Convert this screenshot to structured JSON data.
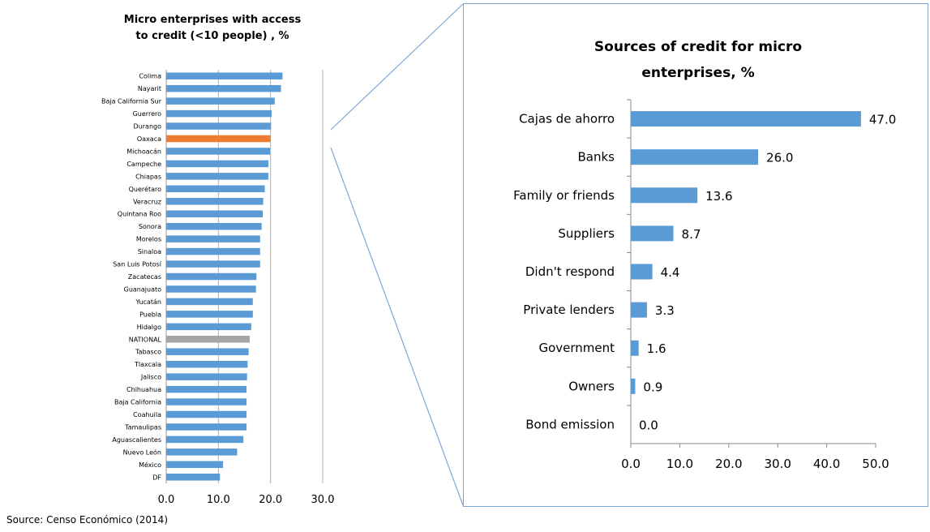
{
  "source_note": "Source:  Censo Económico  (2014)",
  "chart_data": [
    {
      "type": "bar",
      "orientation": "horizontal",
      "title": "Micro enterprises with access to credit  (<10 people) , %",
      "title_lines": [
        "Micro enterprises with access",
        "to credit  (<10 people) , %"
      ],
      "categories": [
        "Colima",
        "Nayarit",
        "Baja California Sur",
        "Guerrero",
        "Durango",
        "Oaxaca",
        "Michoacán",
        "Campeche",
        "Chiapas",
        "Querétaro",
        "Veracruz",
        "Quintana Roo",
        "Sonora",
        "Morelos",
        "Sinaloa",
        "San Luis Potosí",
        "Zacatecas",
        "Guanajuato",
        "Yucatán",
        "Puebla",
        "Hidalgo",
        "NATIONAL",
        "Tabasco",
        "Tlaxcala",
        "Jalisco",
        "Chihuahua",
        "Baja California",
        "Coahuila",
        "Tamaulipas",
        "Aguascalientes",
        "Nuevo León",
        "México",
        "DF"
      ],
      "values": [
        22.3,
        22.0,
        20.8,
        20.2,
        20.1,
        20.0,
        19.9,
        19.6,
        19.6,
        18.9,
        18.6,
        18.5,
        18.3,
        18.0,
        18.0,
        18.0,
        17.3,
        17.2,
        16.6,
        16.6,
        16.3,
        16.0,
        15.8,
        15.6,
        15.5,
        15.4,
        15.4,
        15.4,
        15.4,
        14.8,
        13.6,
        10.9,
        10.3
      ],
      "highlight": {
        "Oaxaca": "#ed7d31",
        "NATIONAL": "#a5a5a5"
      },
      "bar_color": "#5b9bd5",
      "xlim": [
        0,
        30
      ],
      "xticks": [
        "0.0",
        "10.0",
        "20.0",
        "30.0"
      ],
      "grid": "vertical"
    },
    {
      "type": "bar",
      "orientation": "horizontal",
      "title": "Sources of credit for micro enterprises, %",
      "title_lines": [
        "Sources of credit for micro",
        "enterprises, %"
      ],
      "categories": [
        "Cajas de ahorro",
        "Banks",
        "Family or friends",
        "Suppliers",
        "Didn't respond",
        "Private lenders",
        "Government",
        "Owners",
        "Bond emission"
      ],
      "values": [
        47.0,
        26.0,
        13.6,
        8.7,
        4.4,
        3.3,
        1.6,
        0.9,
        0.0
      ],
      "value_labels": [
        "47.0",
        "26.0",
        "13.6",
        "8.7",
        "4.4",
        "3.3",
        "1.6",
        "0.9",
        "0.0"
      ],
      "bar_color": "#5b9bd5",
      "xlim": [
        0,
        50
      ],
      "xticks": [
        "0.0",
        "10.0",
        "20.0",
        "30.0",
        "40.0",
        "50.0"
      ],
      "grid": "none"
    }
  ]
}
